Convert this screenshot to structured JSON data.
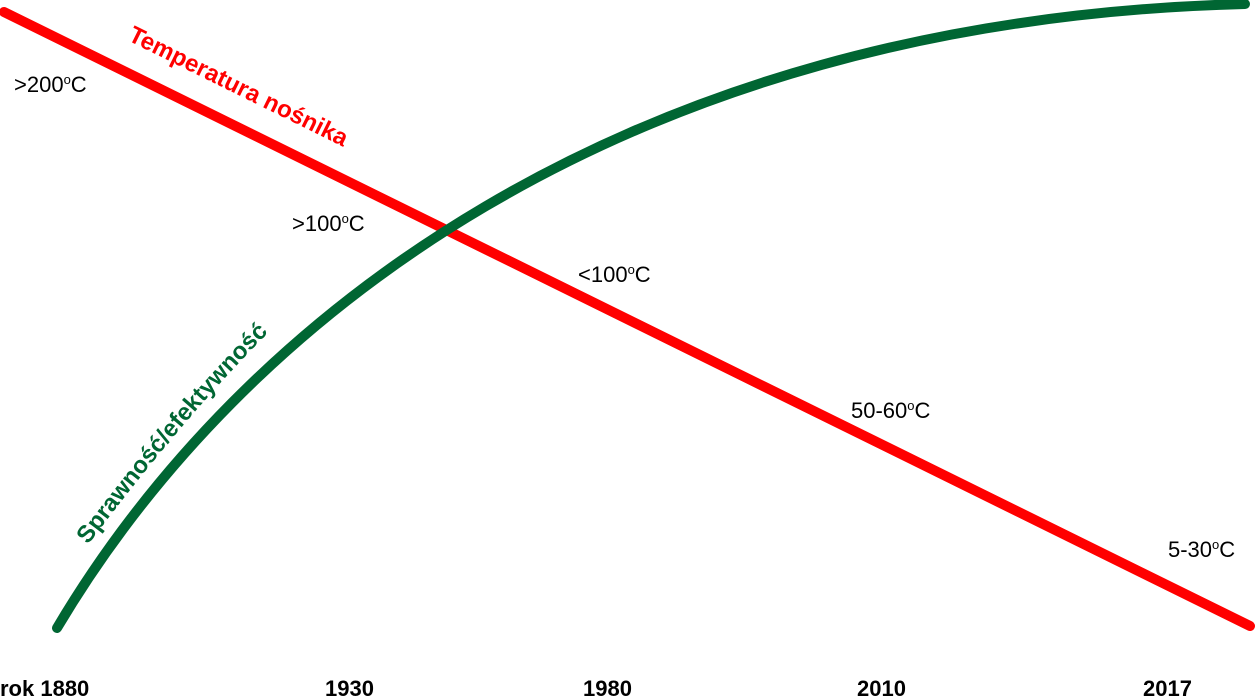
{
  "chart_data": {
    "type": "line",
    "x_ticks": [
      "rok 1880",
      "1930",
      "1980",
      "2010",
      "2017"
    ],
    "series": [
      {
        "name": "Temperatura nośnika",
        "color": "#ff0000",
        "trend": "decreasing"
      },
      {
        "name": "Sprawność/efektywność",
        "color": "#006633",
        "trend": "increasing"
      }
    ],
    "temperature_labels": [
      {
        "value": ">200",
        "unit_sup": "o",
        "unit": "C"
      },
      {
        "value": ">100",
        "unit_sup": "o",
        "unit": "C"
      },
      {
        "value": "<100",
        "unit_sup": "o",
        "unit": "C"
      },
      {
        "value": "50-60",
        "unit_sup": "o",
        "unit": "C"
      },
      {
        "value": "5-30",
        "unit_sup": "o",
        "unit": "C"
      }
    ],
    "grid": false,
    "legend": "none"
  }
}
